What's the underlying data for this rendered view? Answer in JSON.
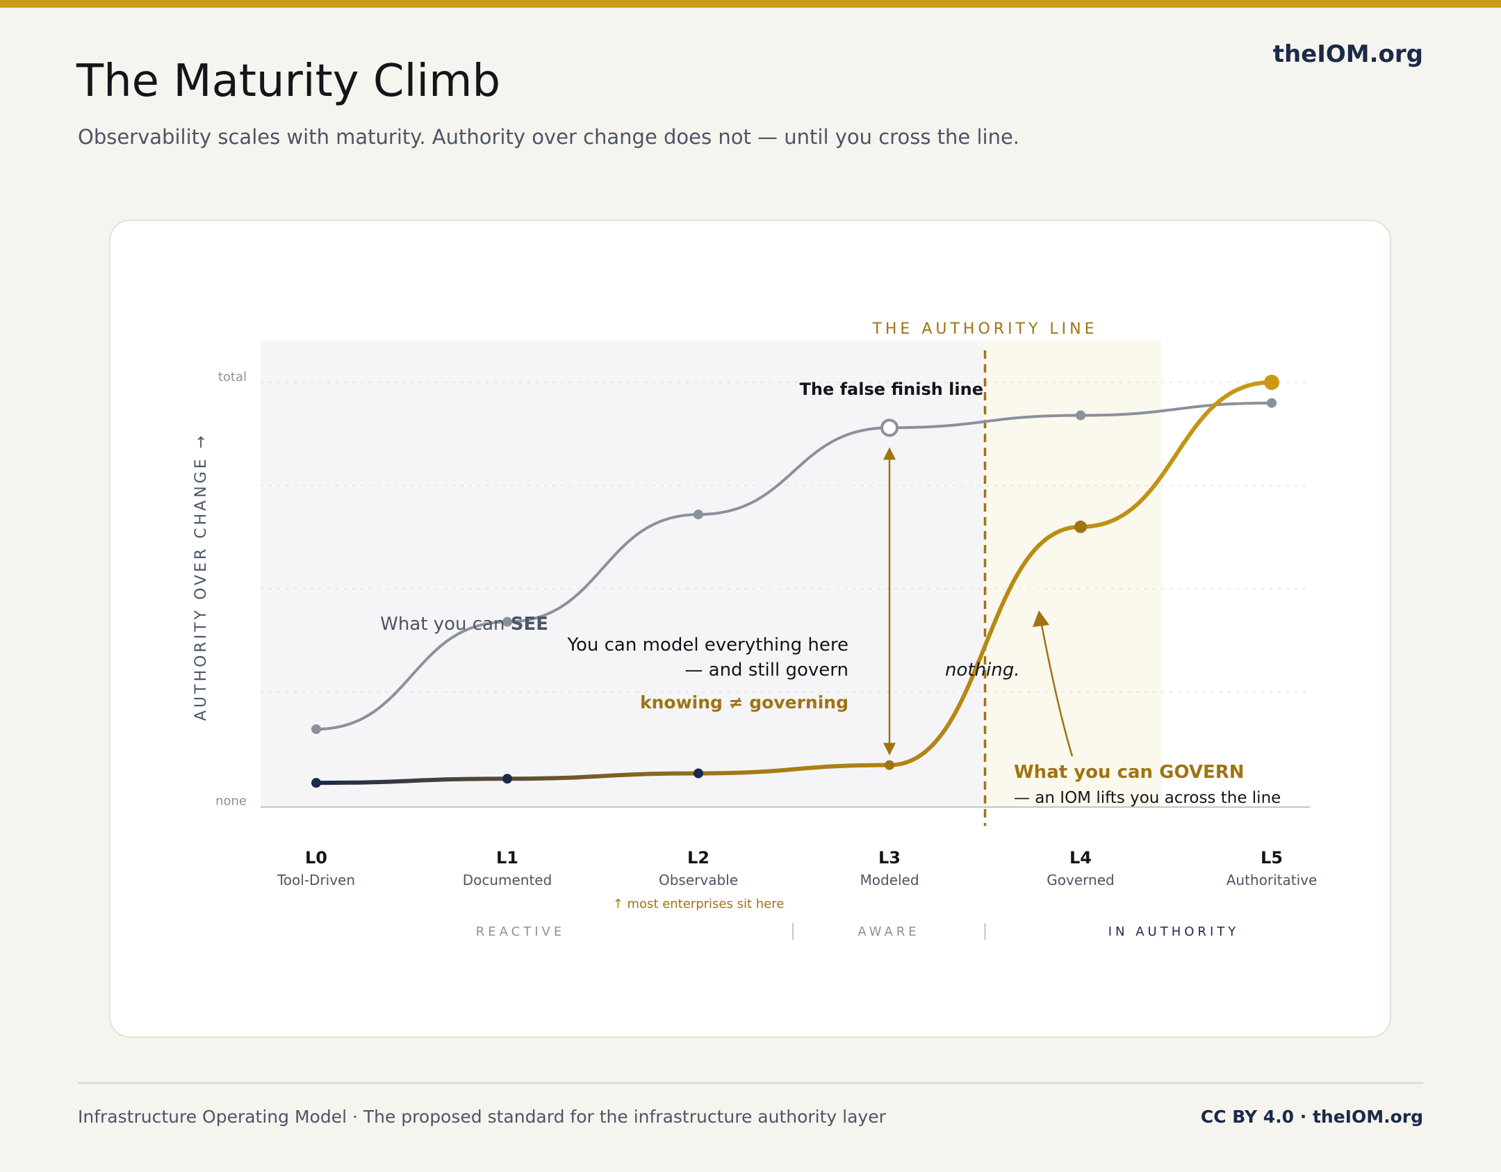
{
  "header": {
    "brand": "theIOM.org",
    "title": "The Maturity Climb",
    "subtitle": "Observability scales with maturity. Authority over change does not — until you cross the line."
  },
  "footer": {
    "left": "Infrastructure Operating Model · The proposed standard for the infrastructure authority layer",
    "right": "CC BY 4.0 · theIOM.org"
  },
  "colors": {
    "accent": "#c99a12",
    "gold_dark": "#a07312",
    "navy": "#1b2a4a",
    "gray_line": "#8a919d",
    "text_muted": "#4b5566"
  },
  "chart_data": {
    "type": "line",
    "ylabel": "AUTHORITY OVER CHANGE →",
    "y_ticks": [
      "total",
      "none"
    ],
    "ylim": [
      0,
      100
    ],
    "levels": [
      {
        "code": "L0",
        "name": "Tool-Driven"
      },
      {
        "code": "L1",
        "name": "Documented"
      },
      {
        "code": "L2",
        "name": "Observable"
      },
      {
        "code": "L3",
        "name": "Modeled"
      },
      {
        "code": "L4",
        "name": "Governed"
      },
      {
        "code": "L5",
        "name": "Authoritative"
      }
    ],
    "series": [
      {
        "name": "What you can SEE",
        "label_prefix": "What you can ",
        "label_bold": "SEE",
        "values": [
          16,
          42,
          68,
          89,
          92,
          95
        ]
      },
      {
        "name": "What you can GOVERN",
        "label_bold": "What you can GOVERN",
        "label_sub": "— an IOM lifts you across the line",
        "values": [
          3,
          4,
          5.3,
          7.3,
          65,
          100
        ]
      }
    ],
    "authority_line": {
      "label": "THE AUTHORITY LINE",
      "x_between": [
        3,
        4
      ]
    },
    "annotations": {
      "false_finish": "The false finish line",
      "model_line1": "You can model everything here",
      "model_line2": "— and still govern",
      "nothing": "nothing.",
      "knowing": "knowing ≠ governing",
      "enterprises": "↑ most enterprises sit here"
    },
    "bands": [
      {
        "label": "REACTIVE"
      },
      {
        "label": "AWARE"
      },
      {
        "label": "IN AUTHORITY"
      }
    ]
  }
}
